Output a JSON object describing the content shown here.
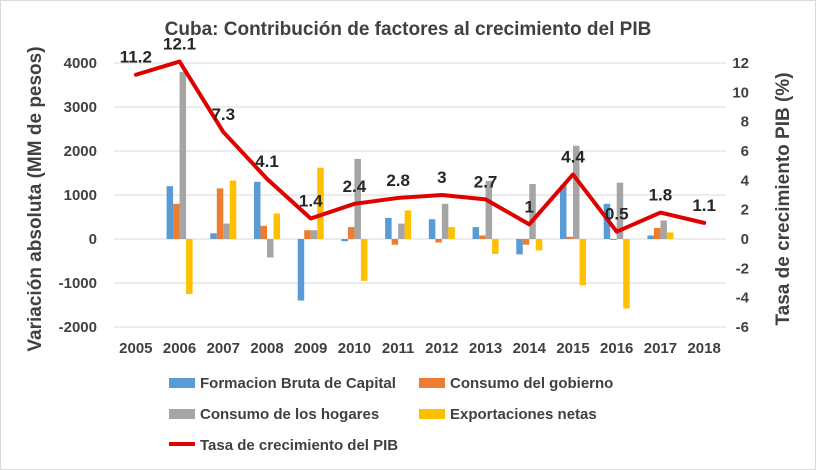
{
  "chart_data": {
    "type": "bar",
    "title": "Cuba: Contribución de factores al crecimiento del PIB",
    "ylabel": "Variación absoluta (MM de pesos)",
    "y2label": "Tasa de crecimiento PIB (%)",
    "ylim": [
      -2000,
      4000
    ],
    "y2lim": [
      -6,
      12
    ],
    "yticks": [
      -2000,
      -1000,
      0,
      1000,
      2000,
      3000,
      4000
    ],
    "y2ticks": [
      -6,
      -4,
      -2,
      0,
      2,
      4,
      6,
      8,
      10,
      12
    ],
    "categories": [
      "2005",
      "2006",
      "2007",
      "2008",
      "2009",
      "2010",
      "2011",
      "2012",
      "2013",
      "2014",
      "2015",
      "2016",
      "2017",
      "2018"
    ],
    "series": [
      {
        "name": "Formacion Bruta de Capital",
        "kind": "bar",
        "color": "#5b9bd5",
        "values": [
          null,
          1200,
          130,
          1300,
          -1400,
          -50,
          480,
          450,
          270,
          -350,
          1220,
          800,
          80,
          null
        ]
      },
      {
        "name": "Consumo del gobierno",
        "kind": "bar",
        "color": "#ed7d31",
        "values": [
          null,
          800,
          1150,
          300,
          200,
          270,
          -130,
          -80,
          80,
          -130,
          50,
          -20,
          250,
          null
        ]
      },
      {
        "name": "Consumo de los hogares",
        "kind": "bar",
        "color": "#a5a5a5",
        "values": [
          null,
          3800,
          350,
          -420,
          200,
          1820,
          350,
          800,
          1320,
          1250,
          2120,
          1280,
          420,
          null
        ]
      },
      {
        "name": "Exportaciones netas",
        "kind": "bar",
        "color": "#ffc000",
        "values": [
          null,
          -1250,
          1330,
          580,
          1620,
          -950,
          650,
          270,
          -340,
          -260,
          -1050,
          -1580,
          150,
          null
        ]
      },
      {
        "name": "Tasa de crecimiento del PIB",
        "kind": "line",
        "axis": "right",
        "color": "#e00000",
        "values": [
          11.2,
          12.1,
          7.3,
          4.1,
          1.4,
          2.4,
          2.8,
          3,
          2.7,
          1,
          4.4,
          0.5,
          1.8,
          1.1
        ],
        "labels": [
          "11.2",
          "12.1",
          "7.3",
          "4.1",
          "1.4",
          "2.4",
          "2.8",
          "3",
          "2.7",
          "1",
          "4.4",
          "0.5",
          "1.8",
          "1.1"
        ]
      }
    ],
    "legend_position": "bottom"
  }
}
